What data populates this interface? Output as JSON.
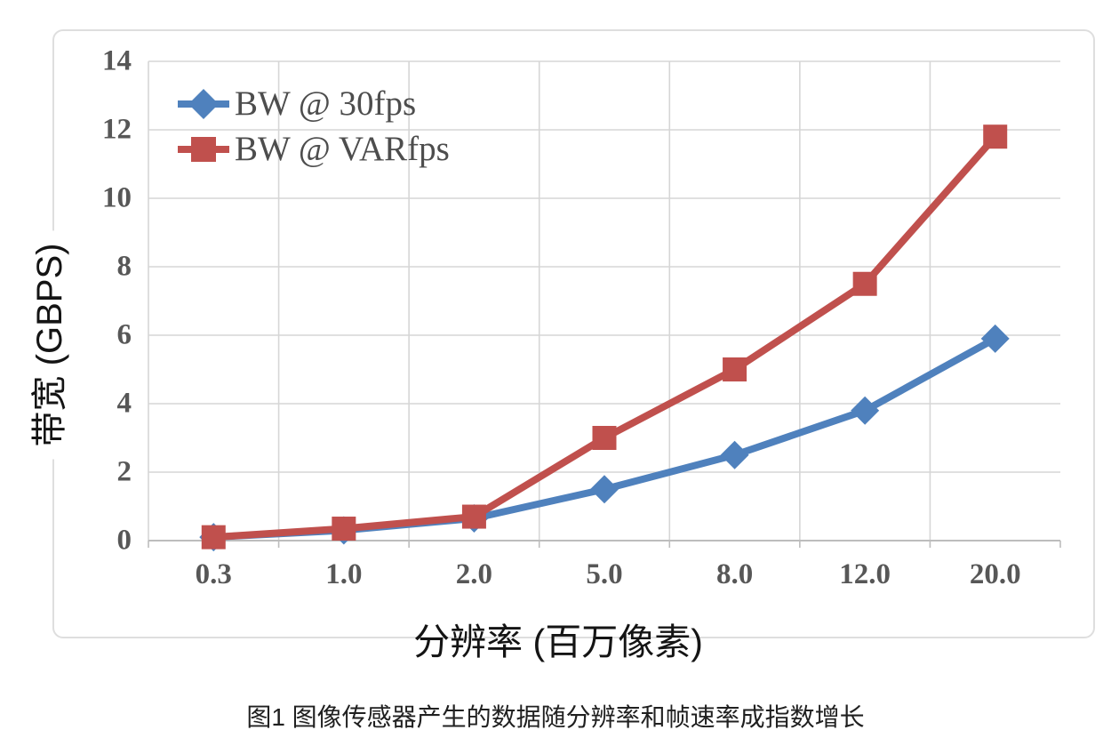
{
  "figure": {
    "caption": "图1 图像传感器产生的数据随分辨率和帧速率成指数增长"
  },
  "chart_data": {
    "type": "line",
    "title": "",
    "xlabel": "分辨率 (百万像素)",
    "ylabel": "带宽 (GBPS)",
    "categories": [
      "0.3",
      "1.0",
      "2.0",
      "5.0",
      "8.0",
      "12.0",
      "20.0"
    ],
    "series": [
      {
        "name": "BW @ 30fps",
        "marker": "diamond",
        "color": "#4f81bd",
        "values": [
          0.1,
          0.3,
          0.65,
          1.5,
          2.5,
          3.8,
          5.9
        ]
      },
      {
        "name": "BW @ VARfps",
        "marker": "square",
        "color": "#c0504d",
        "values": [
          0.1,
          0.35,
          0.7,
          3.0,
          5.0,
          7.5,
          11.8
        ]
      }
    ],
    "ylim": [
      0,
      14
    ],
    "yticks": [
      0,
      2,
      4,
      6,
      8,
      10,
      12,
      14
    ],
    "grid": true,
    "legend_position": "top-left-inside"
  },
  "colors": {
    "gridline": "#d6d6d6",
    "axis_line": "#bdbdbd",
    "tick_label": "#575757",
    "series_blue": "#4f81bd",
    "series_red": "#c0504d"
  }
}
